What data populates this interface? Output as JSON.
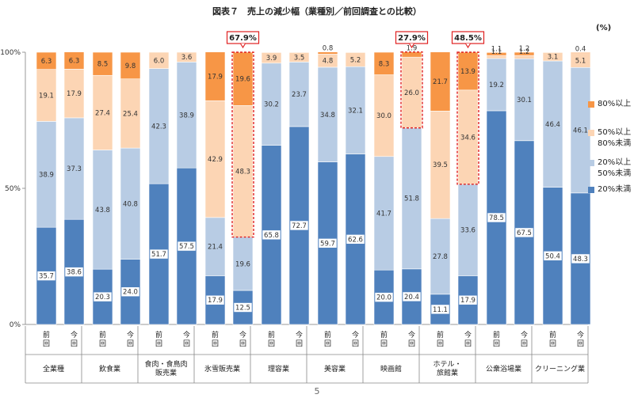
{
  "title": "図表７　売上の減少幅（業種別／前回調査との比較）",
  "unit": "(%)",
  "page_number": "5",
  "colors": {
    "lt20": "#4f81bd",
    "20to50": "#b8cce4",
    "50to80": "#fcd5b4",
    "80plus": "#f79646",
    "highlight": "#e02020"
  },
  "chart_data": {
    "type": "bar",
    "stacked": true,
    "title": "図表７　売上の減少幅（業種別／前回調査との比較）",
    "ylim": [
      0,
      100
    ],
    "ytick_labels": [
      "0%",
      "50%",
      "100%"
    ],
    "ytick_values": [
      0,
      50,
      100
    ],
    "legend_position": "right",
    "groups": [
      {
        "name": "全業種",
        "bars": [
          "前回",
          "今回"
        ]
      },
      {
        "name": "飲食業",
        "bars": [
          "前回",
          "今回"
        ]
      },
      {
        "name": "食肉・食鳥肉販売業",
        "bars": [
          "前回",
          "今回"
        ]
      },
      {
        "name": "氷雪販売業",
        "bars": [
          "前回",
          "今回"
        ]
      },
      {
        "name": "理容業",
        "bars": [
          "前回",
          "今回"
        ]
      },
      {
        "name": "美容業",
        "bars": [
          "前回",
          "今回"
        ]
      },
      {
        "name": "映画館",
        "bars": [
          "前回",
          "今回"
        ]
      },
      {
        "name": "ホテル・旅館業",
        "bars": [
          "前回",
          "今回"
        ]
      },
      {
        "name": "公衆浴場業",
        "bars": [
          "前回",
          "今回"
        ]
      },
      {
        "name": "クリーニング業",
        "bars": [
          "前回",
          "今回"
        ]
      }
    ],
    "series": [
      {
        "name": "20%未満",
        "color_key": "lt20",
        "values": [
          35.7,
          38.6,
          20.3,
          24.0,
          51.7,
          57.5,
          17.9,
          12.5,
          65.8,
          72.7,
          59.7,
          62.6,
          20.0,
          20.4,
          11.1,
          17.9,
          78.5,
          67.5,
          50.4,
          48.3
        ]
      },
      {
        "name": "20%以上\n50%未満",
        "color_key": "20to50",
        "values": [
          38.9,
          37.3,
          43.8,
          40.8,
          42.3,
          38.9,
          21.4,
          19.6,
          30.2,
          23.7,
          34.8,
          32.1,
          41.7,
          51.8,
          27.8,
          33.6,
          19.2,
          30.1,
          46.4,
          46.1
        ]
      },
      {
        "name": "50%以上\n80%未満",
        "color_key": "50to80",
        "values": [
          19.1,
          17.9,
          27.4,
          25.4,
          6.0,
          3.6,
          42.9,
          48.3,
          3.9,
          3.5,
          4.8,
          5.2,
          30.0,
          26.0,
          39.5,
          34.6,
          1.1,
          1.2,
          3.1,
          5.1
        ]
      },
      {
        "name": "80%以上",
        "color_key": "80plus",
        "values": [
          6.3,
          6.3,
          8.5,
          9.8,
          0,
          0,
          17.9,
          19.6,
          0,
          0,
          0.8,
          0,
          8.3,
          1.9,
          21.7,
          13.9,
          1.1,
          1.2,
          0,
          0.4
        ]
      }
    ],
    "highlights": [
      {
        "bar_index": 7,
        "label": "67.9%",
        "segments": [
          "50%以上\n80%未満",
          "80%以上"
        ]
      },
      {
        "bar_index": 13,
        "label": "27.9%",
        "segments": [
          "50%以上\n80%未満",
          "80%以上"
        ]
      },
      {
        "bar_index": 15,
        "label": "48.5%",
        "segments": [
          "50%以上\n80%未満",
          "80%以上"
        ]
      }
    ]
  }
}
